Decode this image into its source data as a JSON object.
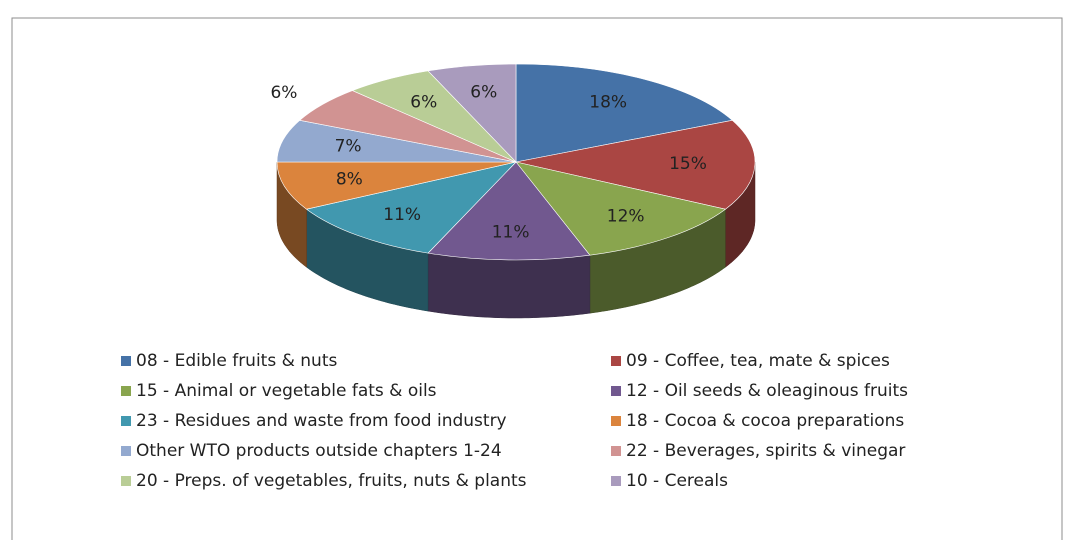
{
  "chart_data": {
    "type": "pie3d",
    "categories": [
      "08 - Edible fruits & nuts",
      "09 - Coffee, tea, mate & spices",
      "15 - Animal or vegetable fats & oils",
      "12 - Oil seeds & oleaginous fruits",
      "23 - Residues and waste from food industry",
      "18 - Cocoa & cocoa preparations",
      "Other WTO products outside chapters 1-24",
      "22 - Beverages, spirits & vinegar",
      "20 - Preps. of vegetables, fruits, nuts & plants",
      "10 - Cereals"
    ],
    "values": [
      18,
      15,
      12,
      11,
      11,
      8,
      7,
      6,
      6,
      6
    ],
    "value_labels": [
      "18%",
      "15%",
      "12%",
      "11%",
      "11%",
      "8%",
      "7%",
      "6%",
      "6%",
      "6%"
    ],
    "colors": [
      "#4572a7",
      "#aa4643",
      "#89a54e",
      "#71588f",
      "#4198af",
      "#db843d",
      "#93a9cf",
      "#d19392",
      "#b9cd96",
      "#a99bbd"
    ],
    "legend": "bottom"
  }
}
